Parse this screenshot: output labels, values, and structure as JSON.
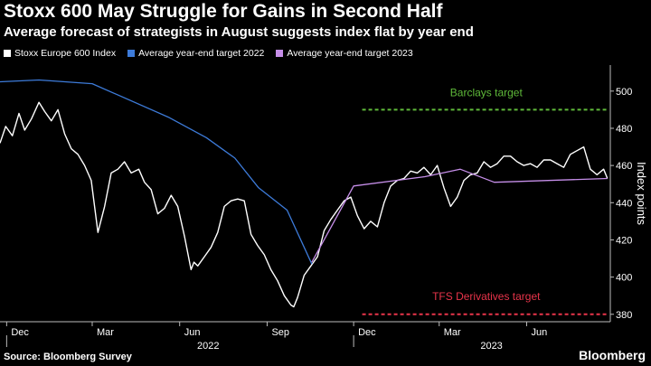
{
  "header": {
    "title": "Stoxx 600 May Struggle for Gains in Second Half",
    "subtitle": "Average forecast of strategists in August suggests index flat by year end"
  },
  "footer": {
    "source": "Source: Bloomberg Survey",
    "brand": "Bloomberg"
  },
  "chart_data": {
    "type": "line",
    "ylabel": "Index points",
    "ylim": [
      376,
      514
    ],
    "yticks": [
      380,
      400,
      420,
      440,
      460,
      480,
      500
    ],
    "x_range": [
      "2021-11-24",
      "2023-08-28"
    ],
    "x_ticks": [
      {
        "date": "2021-12-01",
        "label": "Dec"
      },
      {
        "date": "2022-03-01",
        "label": "Mar"
      },
      {
        "date": "2022-06-01",
        "label": "Jun"
      },
      {
        "date": "2022-09-01",
        "label": "Sep"
      },
      {
        "date": "2022-12-01",
        "label": "Dec"
      },
      {
        "date": "2023-03-01",
        "label": "Mar"
      },
      {
        "date": "2023-06-01",
        "label": "Jun"
      }
    ],
    "year_labels": [
      {
        "date": "2022-07-01",
        "label": "2022"
      },
      {
        "date": "2023-04-25",
        "label": "2023"
      }
    ],
    "grid": false,
    "legend_position": "top-left",
    "colors": {
      "index": "#ffffff",
      "target2022": "#3d7bd9",
      "target2023": "#c58ee8",
      "barclays": "#5fba3a",
      "tfs": "#e8344a"
    },
    "series": [
      {
        "name": "Stoxx Europe 600 Index",
        "dates": [
          "2021-11-24",
          "2021-11-30",
          "2021-12-07",
          "2021-12-14",
          "2021-12-20",
          "2021-12-27",
          "2022-01-04",
          "2022-01-10",
          "2022-01-17",
          "2022-01-24",
          "2022-01-31",
          "2022-02-07",
          "2022-02-14",
          "2022-02-21",
          "2022-02-28",
          "2022-03-07",
          "2022-03-14",
          "2022-03-21",
          "2022-03-28",
          "2022-04-04",
          "2022-04-11",
          "2022-04-19",
          "2022-04-25",
          "2022-05-02",
          "2022-05-09",
          "2022-05-16",
          "2022-05-23",
          "2022-05-30",
          "2022-06-06",
          "2022-06-13",
          "2022-06-16",
          "2022-06-20",
          "2022-06-27",
          "2022-07-04",
          "2022-07-11",
          "2022-07-18",
          "2022-07-25",
          "2022-08-01",
          "2022-08-08",
          "2022-08-15",
          "2022-08-22",
          "2022-08-29",
          "2022-09-05",
          "2022-09-12",
          "2022-09-19",
          "2022-09-26",
          "2022-09-29",
          "2022-10-03",
          "2022-10-10",
          "2022-10-17",
          "2022-10-24",
          "2022-10-31",
          "2022-11-07",
          "2022-11-14",
          "2022-11-21",
          "2022-11-28",
          "2022-12-05",
          "2022-12-12",
          "2022-12-19",
          "2022-12-26",
          "2023-01-02",
          "2023-01-09",
          "2023-01-16",
          "2023-01-23",
          "2023-01-30",
          "2023-02-06",
          "2023-02-13",
          "2023-02-20",
          "2023-02-27",
          "2023-03-06",
          "2023-03-13",
          "2023-03-20",
          "2023-03-27",
          "2023-04-03",
          "2023-04-10",
          "2023-04-17",
          "2023-04-24",
          "2023-05-01",
          "2023-05-08",
          "2023-05-15",
          "2023-05-22",
          "2023-05-29",
          "2023-06-05",
          "2023-06-12",
          "2023-06-19",
          "2023-06-26",
          "2023-07-03",
          "2023-07-10",
          "2023-07-17",
          "2023-07-24",
          "2023-07-31",
          "2023-08-07",
          "2023-08-14",
          "2023-08-21",
          "2023-08-25"
        ],
        "values": [
          472,
          481,
          476,
          488,
          479,
          485,
          494,
          489,
          484,
          490,
          477,
          469,
          466,
          460,
          452,
          424,
          438,
          456,
          458,
          462,
          456,
          458,
          451,
          447,
          434,
          437,
          444,
          438,
          422,
          404,
          408,
          406,
          411,
          416,
          424,
          438,
          441,
          442,
          441,
          423,
          417,
          412,
          404,
          398,
          390,
          385,
          384,
          389,
          401,
          406,
          411,
          425,
          431,
          436,
          441,
          443,
          433,
          426,
          430,
          427,
          440,
          449,
          452,
          453,
          457,
          456,
          459,
          455,
          460,
          448,
          438,
          443,
          452,
          455,
          456,
          462,
          459,
          461,
          465,
          465,
          462,
          460,
          461,
          459,
          463,
          463,
          461,
          459,
          466,
          468,
          470,
          458,
          455,
          458,
          453
        ]
      },
      {
        "name": "Average year-end target 2022",
        "dates": [
          "2021-11-24",
          "2022-01-04",
          "2022-03-01",
          "2022-05-20",
          "2022-06-29",
          "2022-07-29",
          "2022-08-23",
          "2022-09-22",
          "2022-10-18"
        ],
        "values": [
          505,
          506,
          504,
          486,
          475,
          464,
          448,
          436,
          407
        ]
      },
      {
        "name": "Average year-end target 2023",
        "dates": [
          "2022-10-18",
          "2022-12-01",
          "2023-02-14",
          "2023-03-23",
          "2023-04-28",
          "2023-08-25"
        ],
        "values": [
          408,
          449,
          454,
          458,
          451,
          453
        ]
      }
    ],
    "reference_lines": [
      {
        "label": "Barclays target",
        "value": 490,
        "start": "2022-12-10"
      },
      {
        "label": "TFS Derivatives target",
        "value": 380,
        "start": "2022-12-10"
      }
    ]
  }
}
